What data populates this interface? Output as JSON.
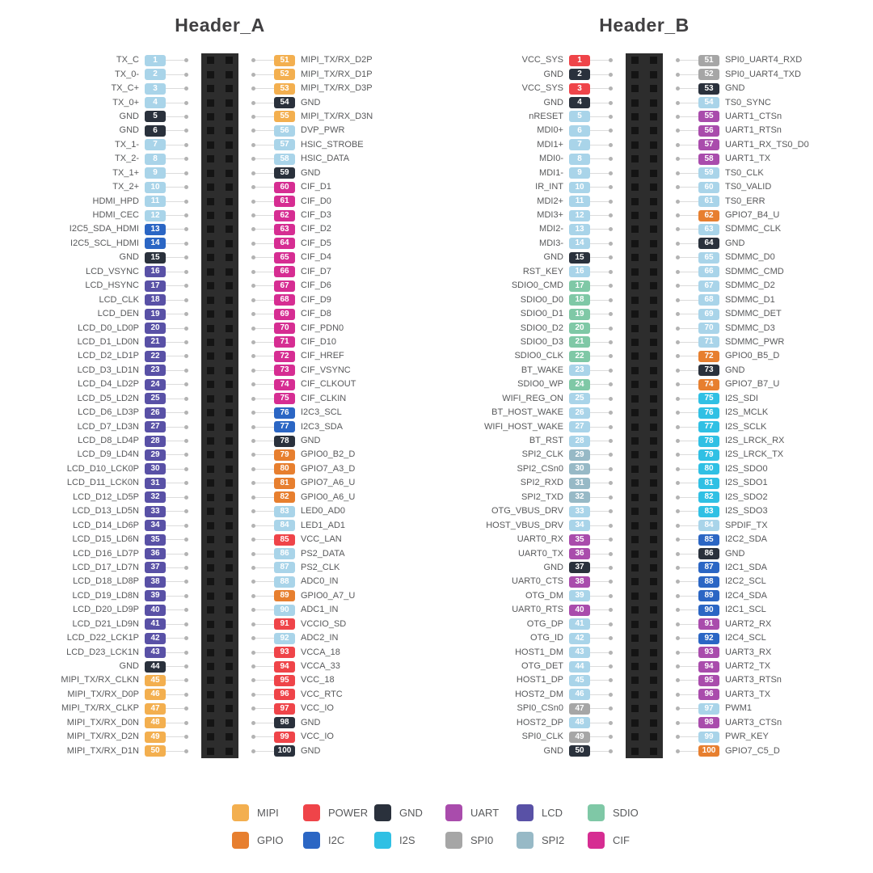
{
  "colors": {
    "mipi": "#F3AF4F",
    "power": "#EF4449",
    "gnd": "#2A313C",
    "uart": "#A94CAC",
    "lcd": "#5951A6",
    "sdio": "#7FC8A6",
    "gpio": "#E77F2F",
    "i2c": "#2B66C4",
    "i2s": "#30C0E4",
    "spi0": "#A6A6A6",
    "spi2": "#97B9C6",
    "cif": "#D62D92",
    "def": "#A9D4E9"
  },
  "header_a": {
    "title": "Header_A",
    "left_pins": [
      [
        1,
        "TX_C",
        "def"
      ],
      [
        2,
        "TX_0-",
        "def"
      ],
      [
        3,
        "TX_C+",
        "def"
      ],
      [
        4,
        "TX_0+",
        "def"
      ],
      [
        5,
        "GND",
        "gnd"
      ],
      [
        6,
        "GND",
        "gnd"
      ],
      [
        7,
        "TX_1-",
        "def"
      ],
      [
        8,
        "TX_2-",
        "def"
      ],
      [
        9,
        "TX_1+",
        "def"
      ],
      [
        10,
        "TX_2+",
        "def"
      ],
      [
        11,
        "HDMI_HPD",
        "def"
      ],
      [
        12,
        "HDMI_CEC",
        "def"
      ],
      [
        13,
        "I2C5_SDA_HDMI",
        "i2c"
      ],
      [
        14,
        "I2C5_SCL_HDMI",
        "i2c"
      ],
      [
        15,
        "GND",
        "gnd"
      ],
      [
        16,
        "LCD_VSYNC",
        "lcd"
      ],
      [
        17,
        "LCD_HSYNC",
        "lcd"
      ],
      [
        18,
        "LCD_CLK",
        "lcd"
      ],
      [
        19,
        "LCD_DEN",
        "lcd"
      ],
      [
        20,
        "LCD_D0_LD0P",
        "lcd"
      ],
      [
        21,
        "LCD_D1_LD0N",
        "lcd"
      ],
      [
        22,
        "LCD_D2_LD1P",
        "lcd"
      ],
      [
        23,
        "LCD_D3_LD1N",
        "lcd"
      ],
      [
        24,
        "LCD_D4_LD2P",
        "lcd"
      ],
      [
        25,
        "LCD_D5_LD2N",
        "lcd"
      ],
      [
        26,
        "LCD_D6_LD3P",
        "lcd"
      ],
      [
        27,
        "LCD_D7_LD3N",
        "lcd"
      ],
      [
        28,
        "LCD_D8_LD4P",
        "lcd"
      ],
      [
        29,
        "LCD_D9_LD4N",
        "lcd"
      ],
      [
        30,
        "LCD_D10_LCK0P",
        "lcd"
      ],
      [
        31,
        "LCD_D11_LCK0N",
        "lcd"
      ],
      [
        32,
        "LCD_D12_LD5P",
        "lcd"
      ],
      [
        33,
        "LCD_D13_LD5N",
        "lcd"
      ],
      [
        34,
        "LCD_D14_LD6P",
        "lcd"
      ],
      [
        35,
        "LCD_D15_LD6N",
        "lcd"
      ],
      [
        36,
        "LCD_D16_LD7P",
        "lcd"
      ],
      [
        37,
        "LCD_D17_LD7N",
        "lcd"
      ],
      [
        38,
        "LCD_D18_LD8P",
        "lcd"
      ],
      [
        39,
        "LCD_D19_LD8N",
        "lcd"
      ],
      [
        40,
        "LCD_D20_LD9P",
        "lcd"
      ],
      [
        41,
        "LCD_D21_LD9N",
        "lcd"
      ],
      [
        42,
        "LCD_D22_LCK1P",
        "lcd"
      ],
      [
        43,
        "LCD_D23_LCK1N",
        "lcd"
      ],
      [
        44,
        "GND",
        "gnd"
      ],
      [
        45,
        "MIPI_TX/RX_CLKN",
        "mipi"
      ],
      [
        46,
        "MIPI_TX/RX_D0P",
        "mipi"
      ],
      [
        47,
        "MIPI_TX/RX_CLKP",
        "mipi"
      ],
      [
        48,
        "MIPI_TX/RX_D0N",
        "mipi"
      ],
      [
        49,
        "MIPI_TX/RX_D2N",
        "mipi"
      ],
      [
        50,
        "MIPI_TX/RX_D1N",
        "mipi"
      ]
    ],
    "right_pins": [
      [
        51,
        "MIPI_TX/RX_D2P",
        "mipi"
      ],
      [
        52,
        "MIPI_TX/RX_D1P",
        "mipi"
      ],
      [
        53,
        "MIPI_TX/RX_D3P",
        "mipi"
      ],
      [
        54,
        "GND",
        "gnd"
      ],
      [
        55,
        "MIPI_TX/RX_D3N",
        "mipi"
      ],
      [
        56,
        "DVP_PWR",
        "def"
      ],
      [
        57,
        "HSIC_STROBE",
        "def"
      ],
      [
        58,
        "HSIC_DATA",
        "def"
      ],
      [
        59,
        "GND",
        "gnd"
      ],
      [
        60,
        "CIF_D1",
        "cif"
      ],
      [
        61,
        "CIF_D0",
        "cif"
      ],
      [
        62,
        "CIF_D3",
        "cif"
      ],
      [
        63,
        "CIF_D2",
        "cif"
      ],
      [
        64,
        "CIF_D5",
        "cif"
      ],
      [
        65,
        "CIF_D4",
        "cif"
      ],
      [
        66,
        "CIF_D7",
        "cif"
      ],
      [
        67,
        "CIF_D6",
        "cif"
      ],
      [
        68,
        "CIF_D9",
        "cif"
      ],
      [
        69,
        "CIF_D8",
        "cif"
      ],
      [
        70,
        "CIF_PDN0",
        "cif"
      ],
      [
        71,
        "CIF_D10",
        "cif"
      ],
      [
        72,
        "CIF_HREF",
        "cif"
      ],
      [
        73,
        "CIF_VSYNC",
        "cif"
      ],
      [
        74,
        "CIF_CLKOUT",
        "cif"
      ],
      [
        75,
        "CIF_CLKIN",
        "cif"
      ],
      [
        76,
        "I2C3_SCL",
        "i2c"
      ],
      [
        77,
        "I2C3_SDA",
        "i2c"
      ],
      [
        78,
        "GND",
        "gnd"
      ],
      [
        79,
        "GPIO0_B2_D",
        "gpio"
      ],
      [
        80,
        "GPIO7_A3_D",
        "gpio"
      ],
      [
        81,
        "GPIO7_A6_U",
        "gpio"
      ],
      [
        82,
        "GPIO0_A6_U",
        "gpio"
      ],
      [
        83,
        "LED0_AD0",
        "def"
      ],
      [
        84,
        "LED1_AD1",
        "def"
      ],
      [
        85,
        "VCC_LAN",
        "power"
      ],
      [
        86,
        "PS2_DATA",
        "def"
      ],
      [
        87,
        "PS2_CLK",
        "def"
      ],
      [
        88,
        "ADC0_IN",
        "def"
      ],
      [
        89,
        "GPIO0_A7_U",
        "gpio"
      ],
      [
        90,
        "ADC1_IN",
        "def"
      ],
      [
        91,
        "VCCIO_SD",
        "power"
      ],
      [
        92,
        "ADC2_IN",
        "def"
      ],
      [
        93,
        "VCCA_18",
        "power"
      ],
      [
        94,
        "VCCA_33",
        "power"
      ],
      [
        95,
        "VCC_18",
        "power"
      ],
      [
        96,
        "VCC_RTC",
        "power"
      ],
      [
        97,
        "VCC_IO",
        "power"
      ],
      [
        98,
        "GND",
        "gnd"
      ],
      [
        99,
        "VCC_IO",
        "power"
      ],
      [
        100,
        "GND",
        "gnd"
      ]
    ]
  },
  "header_b": {
    "title": "Header_B",
    "left_pins": [
      [
        1,
        "VCC_SYS",
        "power"
      ],
      [
        2,
        "GND",
        "gnd"
      ],
      [
        3,
        "VCC_SYS",
        "power"
      ],
      [
        4,
        "GND",
        "gnd"
      ],
      [
        5,
        "nRESET",
        "def"
      ],
      [
        6,
        "MDI0+",
        "def"
      ],
      [
        7,
        "MDI1+",
        "def"
      ],
      [
        8,
        "MDI0-",
        "def"
      ],
      [
        9,
        "MDI1-",
        "def"
      ],
      [
        10,
        "IR_INT",
        "def"
      ],
      [
        11,
        "MDI2+",
        "def"
      ],
      [
        12,
        "MDI3+",
        "def"
      ],
      [
        13,
        "MDI2-",
        "def"
      ],
      [
        14,
        "MDI3-",
        "def"
      ],
      [
        15,
        "GND",
        "gnd"
      ],
      [
        16,
        "RST_KEY",
        "def"
      ],
      [
        17,
        "SDIO0_CMD",
        "sdio"
      ],
      [
        18,
        "SDIO0_D0",
        "sdio"
      ],
      [
        19,
        "SDIO0_D1",
        "sdio"
      ],
      [
        20,
        "SDIO0_D2",
        "sdio"
      ],
      [
        21,
        "SDIO0_D3",
        "sdio"
      ],
      [
        22,
        "SDIO0_CLK",
        "sdio"
      ],
      [
        23,
        "BT_WAKE",
        "def"
      ],
      [
        24,
        "SDIO0_WP",
        "sdio"
      ],
      [
        25,
        "WIFI_REG_ON",
        "def"
      ],
      [
        26,
        "BT_HOST_WAKE",
        "def"
      ],
      [
        27,
        "WIFI_HOST_WAKE",
        "def"
      ],
      [
        28,
        "BT_RST",
        "def"
      ],
      [
        29,
        "SPI2_CLK",
        "spi2"
      ],
      [
        30,
        "SPI2_CSn0",
        "spi2"
      ],
      [
        31,
        "SPI2_RXD",
        "spi2"
      ],
      [
        32,
        "SPI2_TXD",
        "spi2"
      ],
      [
        33,
        "OTG_VBUS_DRV",
        "def"
      ],
      [
        34,
        "HOST_VBUS_DRV",
        "def"
      ],
      [
        35,
        "UART0_RX",
        "uart"
      ],
      [
        36,
        "UART0_TX",
        "uart"
      ],
      [
        37,
        "GND",
        "gnd"
      ],
      [
        38,
        "UART0_CTS",
        "uart"
      ],
      [
        39,
        "OTG_DM",
        "def"
      ],
      [
        40,
        "UART0_RTS",
        "uart"
      ],
      [
        41,
        "OTG_DP",
        "def"
      ],
      [
        42,
        "OTG_ID",
        "def"
      ],
      [
        43,
        "HOST1_DM",
        "def"
      ],
      [
        44,
        "OTG_DET",
        "def"
      ],
      [
        45,
        "HOST1_DP",
        "def"
      ],
      [
        46,
        "HOST2_DM",
        "def"
      ],
      [
        47,
        "SPI0_CSn0",
        "spi0"
      ],
      [
        48,
        "HOST2_DP",
        "def"
      ],
      [
        49,
        "SPI0_CLK",
        "spi0"
      ],
      [
        50,
        "GND",
        "gnd"
      ]
    ],
    "right_pins": [
      [
        51,
        "SPI0_UART4_RXD",
        "spi0"
      ],
      [
        52,
        "SPI0_UART4_TXD",
        "spi0"
      ],
      [
        53,
        "GND",
        "gnd"
      ],
      [
        54,
        "TS0_SYNC",
        "def"
      ],
      [
        55,
        "UART1_CTSn",
        "uart"
      ],
      [
        56,
        "UART1_RTSn",
        "uart"
      ],
      [
        57,
        "UART1_RX_TS0_D0",
        "uart"
      ],
      [
        58,
        "UART1_TX",
        "uart"
      ],
      [
        59,
        "TS0_CLK",
        "def"
      ],
      [
        60,
        "TS0_VALID",
        "def"
      ],
      [
        61,
        "TS0_ERR",
        "def"
      ],
      [
        62,
        "GPIO7_B4_U",
        "gpio"
      ],
      [
        63,
        "SDMMC_CLK",
        "def"
      ],
      [
        64,
        "GND",
        "gnd"
      ],
      [
        65,
        "SDMMC_D0",
        "def"
      ],
      [
        66,
        "SDMMC_CMD",
        "def"
      ],
      [
        67,
        "SDMMC_D2",
        "def"
      ],
      [
        68,
        "SDMMC_D1",
        "def"
      ],
      [
        69,
        "SDMMC_DET",
        "def"
      ],
      [
        70,
        "SDMMC_D3",
        "def"
      ],
      [
        71,
        "SDMMC_PWR",
        "def"
      ],
      [
        72,
        "GPIO0_B5_D",
        "gpio"
      ],
      [
        73,
        "GND",
        "gnd"
      ],
      [
        74,
        "GPIO7_B7_U",
        "gpio"
      ],
      [
        75,
        "I2S_SDI",
        "i2s"
      ],
      [
        76,
        "I2S_MCLK",
        "i2s"
      ],
      [
        77,
        "I2S_SCLK",
        "i2s"
      ],
      [
        78,
        "I2S_LRCK_RX",
        "i2s"
      ],
      [
        79,
        "I2S_LRCK_TX",
        "i2s"
      ],
      [
        80,
        "I2S_SDO0",
        "i2s"
      ],
      [
        81,
        "I2S_SDO1",
        "i2s"
      ],
      [
        82,
        "I2S_SDO2",
        "i2s"
      ],
      [
        83,
        "I2S_SDO3",
        "i2s"
      ],
      [
        84,
        "SPDIF_TX",
        "def"
      ],
      [
        85,
        "I2C2_SDA",
        "i2c"
      ],
      [
        86,
        "GND",
        "gnd"
      ],
      [
        87,
        "I2C1_SDA",
        "i2c"
      ],
      [
        88,
        "I2C2_SCL",
        "i2c"
      ],
      [
        89,
        "I2C4_SDA",
        "i2c"
      ],
      [
        90,
        "I2C1_SCL",
        "i2c"
      ],
      [
        91,
        "UART2_RX",
        "uart"
      ],
      [
        92,
        "I2C4_SCL",
        "i2c"
      ],
      [
        93,
        "UART3_RX",
        "uart"
      ],
      [
        94,
        "UART2_TX",
        "uart"
      ],
      [
        95,
        "UART3_RTSn",
        "uart"
      ],
      [
        96,
        "UART3_TX",
        "uart"
      ],
      [
        97,
        "PWM1",
        "def"
      ],
      [
        98,
        "UART3_CTSn",
        "uart"
      ],
      [
        99,
        "PWR_KEY",
        "def"
      ],
      [
        100,
        "GPIO7_C5_D",
        "gpio"
      ]
    ]
  },
  "legend": [
    {
      "label": "MIPI",
      "cat": "mipi"
    },
    {
      "label": "POWER",
      "cat": "power"
    },
    {
      "label": "GND",
      "cat": "gnd"
    },
    {
      "label": "UART",
      "cat": "uart"
    },
    {
      "label": "LCD",
      "cat": "lcd"
    },
    {
      "label": "SDIO",
      "cat": "sdio"
    },
    {
      "label": "GPIO",
      "cat": "gpio"
    },
    {
      "label": "I2C",
      "cat": "i2c"
    },
    {
      "label": "I2S",
      "cat": "i2s"
    },
    {
      "label": "SPI0",
      "cat": "spi0"
    },
    {
      "label": "SPI2",
      "cat": "spi2"
    },
    {
      "label": "CIF",
      "cat": "cif"
    }
  ]
}
